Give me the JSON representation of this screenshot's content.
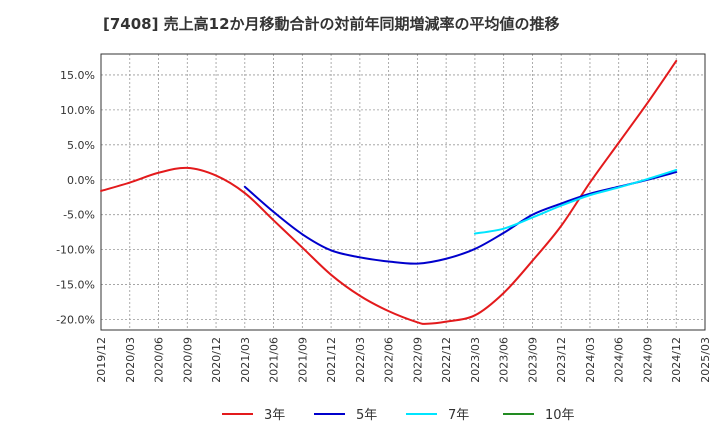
{
  "chart_data": {
    "type": "line",
    "title": "[7408]  売上高12か月移動合計の対前年同期増減率の平均値の推移",
    "xlabel": "",
    "ylabel": "",
    "x_ticks": [
      "2019/12",
      "2020/03",
      "2020/06",
      "2020/09",
      "2020/12",
      "2021/03",
      "2021/06",
      "2021/09",
      "2021/12",
      "2022/03",
      "2022/06",
      "2022/09",
      "2022/12",
      "2023/03",
      "2023/06",
      "2023/09",
      "2023/12",
      "2024/03",
      "2024/06",
      "2024/09",
      "2024/12",
      "2025/03"
    ],
    "y_ticks": [
      {
        "value": 15,
        "label": "15.0%"
      },
      {
        "value": 10,
        "label": "10.0%"
      },
      {
        "value": 5,
        "label": "5.0%"
      },
      {
        "value": 0,
        "label": "0.0%"
      },
      {
        "value": -5,
        "label": "-5.0%"
      },
      {
        "value": -10,
        "label": "-10.0%"
      },
      {
        "value": -15,
        "label": "-15.0%"
      },
      {
        "value": -20,
        "label": "-20.0%"
      }
    ],
    "ylim": [
      -21.5,
      18
    ],
    "grid": true,
    "legend_position": "bottom",
    "series": [
      {
        "name": "3年",
        "color": "#e31a1c",
        "points": [
          [
            "2019/12",
            -1.6
          ],
          [
            "2020/03",
            -0.4
          ],
          [
            "2020/06",
            1.0
          ],
          [
            "2020/09",
            1.7
          ],
          [
            "2020/12",
            0.6
          ],
          [
            "2021/03",
            -1.9
          ],
          [
            "2021/06",
            -5.8
          ],
          [
            "2021/09",
            -9.7
          ],
          [
            "2021/12",
            -13.6
          ],
          [
            "2022/03",
            -16.6
          ],
          [
            "2022/06",
            -18.8
          ],
          [
            "2022/09",
            -20.4
          ],
          [
            "2022/10",
            -20.6
          ],
          [
            "2022/12",
            -20.3
          ],
          [
            "2023/03",
            -19.4
          ],
          [
            "2023/06",
            -16.2
          ],
          [
            "2023/09",
            -11.6
          ],
          [
            "2023/12",
            -6.6
          ],
          [
            "2024/03",
            -0.4
          ],
          [
            "2024/06",
            5.3
          ],
          [
            "2024/09",
            11.0
          ],
          [
            "2024/12",
            17.0
          ]
        ]
      },
      {
        "name": "5年",
        "color": "#0000cc",
        "points": [
          [
            "2021/03",
            -1.0
          ],
          [
            "2021/06",
            -4.6
          ],
          [
            "2021/09",
            -7.8
          ],
          [
            "2021/12",
            -10.1
          ],
          [
            "2022/03",
            -11.1
          ],
          [
            "2022/06",
            -11.7
          ],
          [
            "2022/09",
            -12.0
          ],
          [
            "2022/12",
            -11.3
          ],
          [
            "2023/03",
            -9.9
          ],
          [
            "2023/06",
            -7.6
          ],
          [
            "2023/09",
            -5.0
          ],
          [
            "2023/12",
            -3.4
          ],
          [
            "2024/03",
            -2.0
          ],
          [
            "2024/06",
            -1.0
          ],
          [
            "2024/09",
            0.0
          ],
          [
            "2024/12",
            1.1
          ]
        ]
      },
      {
        "name": "7年",
        "color": "#00e5ff",
        "points": [
          [
            "2023/03",
            -7.7
          ],
          [
            "2023/06",
            -7.0
          ],
          [
            "2023/09",
            -5.4
          ],
          [
            "2023/12",
            -3.7
          ],
          [
            "2024/03",
            -2.2
          ],
          [
            "2024/06",
            -1.1
          ],
          [
            "2024/09",
            0.1
          ],
          [
            "2024/12",
            1.4
          ]
        ]
      },
      {
        "name": "10年",
        "color": "#228b22",
        "points": []
      }
    ]
  }
}
